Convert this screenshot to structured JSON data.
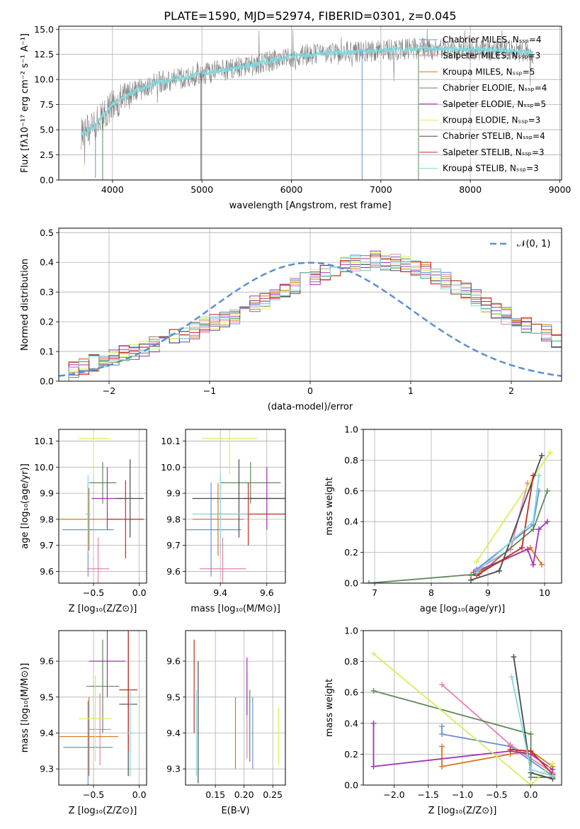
{
  "title": "PLATE=1590, MJD=52974, FIBERID=0301, z=0.045",
  "colors": {
    "c0": "#6a8fd9",
    "c1": "#e87fb0",
    "c2": "#d9761f",
    "c3": "#5e8a5c",
    "c4": "#a033b5",
    "c5": "#d8ef5c",
    "c6": "#4a4a4a",
    "c7": "#c42a20",
    "c8": "#7fd9e0",
    "spectrum": "#808080",
    "gaussian": "#5b8fd4"
  },
  "chart_data": [
    {
      "id": "spectrum",
      "type": "line",
      "xlabel": "wavelength [Angstrom, rest frame]",
      "ylabel": "Flux [fλ10⁻¹⁷ erg cm⁻² s⁻¹ A⁻¹]",
      "xlim": [
        3400,
        9020
      ],
      "ylim": [
        0,
        15.3
      ],
      "xticks": [
        4000,
        5000,
        6000,
        7000,
        8000,
        9000
      ],
      "yticks": [
        0.0,
        2.5,
        5.0,
        7.5,
        10.0,
        12.5,
        15.0
      ],
      "legend_position": "right",
      "legend": [
        "Chabrier MILES, Nₛₛₚ=4",
        "Salpeter MILES, Nₛₛₚ=3",
        "Kroupa MILES, Nₛₛₚ=5",
        "Chabrier ELODIE, Nₛₛₚ=4",
        "Salpeter ELODIE, Nₛₛₚ=5",
        "Kroupa ELODIE, Nₛₛₚ=3",
        "Chabrier STELIB, Nₛₛₚ=4",
        "Salpeter STELIB, Nₛₛₚ=3",
        "Kroupa STELIB, Nₛₛₚ=3"
      ],
      "continuum": [
        [
          3650,
          4.6
        ],
        [
          3750,
          5.0
        ],
        [
          3900,
          6.4
        ],
        [
          4000,
          7.5
        ],
        [
          4200,
          8.6
        ],
        [
          4500,
          9.7
        ],
        [
          4800,
          10.2
        ],
        [
          5000,
          10.6
        ],
        [
          5300,
          11.0
        ],
        [
          5600,
          11.5
        ],
        [
          6000,
          12.3
        ],
        [
          6400,
          12.6
        ],
        [
          6800,
          12.8
        ],
        [
          7200,
          13.0
        ],
        [
          7600,
          13.1
        ],
        [
          8000,
          13.0
        ],
        [
          8400,
          12.9
        ],
        [
          8700,
          12.6
        ]
      ],
      "drops": [
        [
          3810,
          0.2
        ],
        [
          3890,
          0.0
        ],
        [
          4990,
          0.0
        ],
        [
          6790,
          0.0
        ],
        [
          7420,
          0.0
        ]
      ]
    },
    {
      "id": "residuals",
      "type": "step",
      "xlabel": "(data-model)/error",
      "ylabel": "Normed distribution",
      "xlim": [
        -2.5,
        2.5
      ],
      "ylim": [
        0,
        0.515
      ],
      "xticks": [
        -2,
        -1,
        0,
        1,
        2
      ],
      "yticks": [
        0.0,
        0.1,
        0.2,
        0.3,
        0.4,
        0.5
      ],
      "grid": true,
      "gaussian_label": "𝒩(0, 1)",
      "bin_width": 0.1,
      "bin_start": -2.5,
      "hist": [
        [
          0.03,
          0.04,
          0.05,
          0.06,
          0.07,
          0.08,
          0.09,
          0.1,
          0.11,
          0.12,
          0.14,
          0.15,
          0.16,
          0.17,
          0.19,
          0.2,
          0.21,
          0.22,
          0.24,
          0.26,
          0.27,
          0.29,
          0.31,
          0.32,
          0.34,
          0.35,
          0.37,
          0.38,
          0.39,
          0.4,
          0.4,
          0.41,
          0.4,
          0.4,
          0.39,
          0.38,
          0.37,
          0.35,
          0.34,
          0.32,
          0.3,
          0.28,
          0.26,
          0.24,
          0.22,
          0.21,
          0.19,
          0.18,
          0.16,
          0.14
        ],
        [
          0.02,
          0.03,
          0.04,
          0.05,
          0.07,
          0.08,
          0.09,
          0.1,
          0.12,
          0.13,
          0.14,
          0.16,
          0.18,
          0.19,
          0.2,
          0.22,
          0.24,
          0.26,
          0.27,
          0.29,
          0.31,
          0.33,
          0.34,
          0.36,
          0.36,
          0.38,
          0.39,
          0.4,
          0.4,
          0.41,
          0.42,
          0.4,
          0.39,
          0.38,
          0.38,
          0.36,
          0.35,
          0.33,
          0.31,
          0.29,
          0.27,
          0.26,
          0.24,
          0.22,
          0.2,
          0.19,
          0.17,
          0.15,
          0.14,
          0.12
        ]
      ]
    },
    {
      "id": "age-vs-Z",
      "type": "errorbar",
      "xlabel": "Z [log₁₀(Z/Z⊙)]",
      "ylabel": "age  [log₁₀(age/yr)]",
      "xlim": [
        -0.88,
        0.08
      ],
      "ylim": [
        9.555,
        10.145
      ],
      "xticks": [
        -0.5,
        0.0
      ],
      "yticks": [
        9.6,
        9.7,
        9.8,
        9.9,
        10.0,
        10.1
      ],
      "points": [
        {
          "c": 0,
          "x": -0.56,
          "xe": 0.28,
          "y": 9.76,
          "ye": 0.18
        },
        {
          "c": 1,
          "x": -0.45,
          "xe": 0.12,
          "y": 9.61,
          "ye": 0.12
        },
        {
          "c": 2,
          "x": -0.55,
          "xe": 0.33,
          "y": 9.8,
          "ye": 0.12
        },
        {
          "c": 3,
          "x": -0.4,
          "xe": 0.15,
          "y": 9.94,
          "ye": 0.08
        },
        {
          "c": 4,
          "x": -0.35,
          "xe": 0.17,
          "y": 9.88,
          "ye": 0.12
        },
        {
          "c": 5,
          "x": -0.5,
          "xe": 0.17,
          "y": 10.11,
          "ye": 0.14
        },
        {
          "c": 6,
          "x": -0.1,
          "xe": 0.15,
          "y": 9.88,
          "ye": 0.15
        },
        {
          "c": 7,
          "x": -0.15,
          "xe": 0.2,
          "y": 9.8,
          "ye": 0.15
        },
        {
          "c": 8,
          "x": -0.56,
          "xe": 0.03,
          "y": 9.82,
          "ye": 0.15
        }
      ]
    },
    {
      "id": "age-vs-mass",
      "type": "errorbar",
      "xlabel": "mass [log₁₀(M/M⊙)]",
      "ylabel": "",
      "xlim": [
        9.25,
        9.68
      ],
      "ylim": [
        9.555,
        10.145
      ],
      "xticks": [
        9.4,
        9.6
      ],
      "yticks": [
        9.6,
        9.7,
        9.8,
        9.9,
        10.0,
        10.1
      ],
      "points": [
        {
          "c": 0,
          "x": 9.36,
          "xe": 0.13,
          "y": 9.76,
          "ye": 0.18
        },
        {
          "c": 1,
          "x": 9.41,
          "xe": 0.1,
          "y": 9.61,
          "ye": 0.12
        },
        {
          "c": 2,
          "x": 9.39,
          "xe": 0.11,
          "y": 9.8,
          "ye": 0.14
        },
        {
          "c": 3,
          "x": 9.53,
          "xe": 0.13,
          "y": 9.94,
          "ye": 0.08
        },
        {
          "c": 4,
          "x": 9.6,
          "xe": 0.1,
          "y": 9.88,
          "ye": 0.12
        },
        {
          "c": 5,
          "x": 9.44,
          "xe": 0.12,
          "y": 10.11,
          "ye": 0.14
        },
        {
          "c": 6,
          "x": 9.48,
          "xe": 0.2,
          "y": 9.88,
          "ye": 0.15
        },
        {
          "c": 7,
          "x": 9.52,
          "xe": 0.17,
          "y": 9.82,
          "ye": 0.12
        },
        {
          "c": 8,
          "x": 9.4,
          "xe": 0.12,
          "y": 9.82,
          "ye": 0.15
        }
      ]
    },
    {
      "id": "weight-vs-age",
      "type": "line",
      "xlabel": "age  [log₁₀(age/yr)]",
      "ylabel": "mass weight",
      "xlim": [
        6.8,
        10.3
      ],
      "ylim": [
        0,
        1.0
      ],
      "xticks": [
        7,
        8,
        9,
        10
      ],
      "yticks": [
        0.0,
        0.2,
        0.4,
        0.6,
        0.8,
        1.0
      ],
      "grid": true,
      "series": [
        {
          "c": 0,
          "pts": [
            [
              8.8,
              0.09
            ],
            [
              9.8,
              0.38
            ],
            [
              9.9,
              0.6
            ]
          ]
        },
        {
          "c": 1,
          "pts": [
            [
              8.78,
              0.08
            ],
            [
              9.4,
              0.22
            ],
            [
              9.7,
              0.65
            ]
          ]
        },
        {
          "c": 2,
          "pts": [
            [
              8.7,
              0.05
            ],
            [
              9.75,
              0.23
            ],
            [
              9.95,
              0.12
            ]
          ]
        },
        {
          "c": 3,
          "pts": [
            [
              6.9,
              0.0
            ],
            [
              8.85,
              0.06
            ],
            [
              9.8,
              0.35
            ],
            [
              10.05,
              0.6
            ]
          ]
        },
        {
          "c": 4,
          "pts": [
            [
              8.75,
              0.07
            ],
            [
              9.7,
              0.22
            ],
            [
              9.8,
              0.12
            ],
            [
              9.9,
              0.35
            ],
            [
              10.05,
              0.4
            ]
          ]
        },
        {
          "c": 5,
          "pts": [
            [
              8.8,
              0.14
            ],
            [
              10.1,
              0.85
            ]
          ]
        },
        {
          "c": 6,
          "pts": [
            [
              8.7,
              0.02
            ],
            [
              9.2,
              0.08
            ],
            [
              9.95,
              0.83
            ]
          ]
        },
        {
          "c": 7,
          "pts": [
            [
              8.8,
              0.05
            ],
            [
              9.6,
              0.23
            ],
            [
              9.8,
              0.7
            ]
          ]
        },
        {
          "c": 8,
          "pts": [
            [
              8.8,
              0.07
            ],
            [
              9.8,
              0.4
            ],
            [
              9.9,
              0.7
            ]
          ]
        }
      ]
    },
    {
      "id": "mass-vs-Z",
      "type": "errorbar",
      "xlabel": "Z [log₁₀(Z/Z⊙)]",
      "ylabel": "mass [log₁₀(M/M⊙)]",
      "xlim": [
        -0.88,
        0.08
      ],
      "ylim": [
        9.255,
        9.685
      ],
      "xticks": [
        -0.5,
        0.0
      ],
      "yticks": [
        9.3,
        9.4,
        9.5,
        9.6
      ],
      "points": [
        {
          "c": 0,
          "x": -0.56,
          "xe": 0.27,
          "y": 9.36,
          "ye": 0.13
        },
        {
          "c": 1,
          "x": -0.43,
          "xe": 0.12,
          "y": 9.41,
          "ye": 0.1
        },
        {
          "c": 2,
          "x": -0.55,
          "xe": 0.32,
          "y": 9.39,
          "ye": 0.11
        },
        {
          "c": 3,
          "x": -0.4,
          "xe": 0.18,
          "y": 9.53,
          "ye": 0.13
        },
        {
          "c": 4,
          "x": -0.35,
          "xe": 0.2,
          "y": 9.6,
          "ye": 0.1
        },
        {
          "c": 5,
          "x": -0.48,
          "xe": 0.18,
          "y": 9.44,
          "ye": 0.12
        },
        {
          "c": 6,
          "x": -0.12,
          "xe": 0.1,
          "y": 9.48,
          "ye": 0.2
        },
        {
          "c": 7,
          "x": -0.12,
          "xe": 0.1,
          "y": 9.52,
          "ye": 0.17
        },
        {
          "c": 8,
          "x": -0.1,
          "xe": 0.05,
          "y": 9.4,
          "ye": 0.12
        }
      ]
    },
    {
      "id": "mass-vs-ebv",
      "type": "errorbar",
      "xlabel": "E(B-V)",
      "ylabel": "",
      "xlim": [
        0.098,
        0.272
      ],
      "ylim": [
        9.255,
        9.685
      ],
      "xticks": [
        0.15,
        0.2,
        0.25
      ],
      "yticks": [
        9.3,
        9.4,
        9.5,
        9.6
      ],
      "points": [
        {
          "c": 0,
          "x": 0.215,
          "xe": 0,
          "y": 9.4,
          "ye": 0.1
        },
        {
          "c": 1,
          "x": 0.205,
          "xe": 0,
          "y": 9.45,
          "ye": 0.12
        },
        {
          "c": 2,
          "x": 0.185,
          "xe": 0,
          "y": 9.4,
          "ye": 0.1
        },
        {
          "c": 3,
          "x": 0.21,
          "xe": 0,
          "y": 9.42,
          "ye": 0.1
        },
        {
          "c": 4,
          "x": 0.205,
          "xe": 0,
          "y": 9.53,
          "ye": 0.08
        },
        {
          "c": 5,
          "x": 0.26,
          "xe": 0,
          "y": 9.39,
          "ye": 0.08
        },
        {
          "c": 6,
          "x": 0.12,
          "xe": 0,
          "y": 9.43,
          "ye": 0.17
        },
        {
          "c": 7,
          "x": 0.113,
          "xe": 0,
          "y": 9.53,
          "ye": 0.13
        },
        {
          "c": 8,
          "x": 0.117,
          "xe": 0,
          "y": 9.4,
          "ye": 0.12
        }
      ]
    },
    {
      "id": "weight-vs-Z",
      "type": "line",
      "xlabel": "Z [log₁₀(Z/Z⊙)]",
      "ylabel": "mass weight",
      "xlim": [
        -2.45,
        0.45
      ],
      "ylim": [
        0,
        1.0
      ],
      "xticks": [
        -2.0,
        -1.5,
        -1.0,
        -0.5,
        0.0
      ],
      "yticks": [
        0.0,
        0.2,
        0.4,
        0.6,
        0.8,
        1.0
      ],
      "grid": true,
      "series": [
        {
          "c": 0,
          "pts": [
            [
              -1.3,
              0.38
            ],
            [
              -1.3,
              0.33
            ],
            [
              -0.3,
              0.25
            ],
            [
              0.32,
              0.06
            ]
          ]
        },
        {
          "c": 1,
          "pts": [
            [
              -1.3,
              0.65
            ],
            [
              -0.3,
              0.26
            ],
            [
              0.32,
              0.08
            ]
          ]
        },
        {
          "c": 2,
          "pts": [
            [
              -1.3,
              0.25
            ],
            [
              -1.3,
              0.12
            ],
            [
              -0.3,
              0.2
            ],
            [
              0.0,
              0.22
            ],
            [
              0.32,
              0.12
            ]
          ]
        },
        {
          "c": 3,
          "pts": [
            [
              -2.3,
              0.61
            ],
            [
              0.0,
              0.33
            ],
            [
              0.0,
              0.05
            ],
            [
              0.32,
              0.05
            ]
          ]
        },
        {
          "c": 4,
          "pts": [
            [
              -2.3,
              0.4
            ],
            [
              -2.3,
              0.12
            ],
            [
              -0.3,
              0.22
            ],
            [
              0.0,
              0.2
            ],
            [
              0.32,
              0.1
            ]
          ]
        },
        {
          "c": 5,
          "pts": [
            [
              -2.3,
              0.85
            ],
            [
              0.0,
              0.0
            ],
            [
              0.32,
              0.14
            ]
          ]
        },
        {
          "c": 6,
          "pts": [
            [
              -0.25,
              0.83
            ],
            [
              0.0,
              0.08
            ],
            [
              0.32,
              0.04
            ]
          ]
        },
        {
          "c": 7,
          "pts": [
            [
              -0.3,
              0.23
            ],
            [
              0.0,
              0.22
            ],
            [
              0.32,
              0.07
            ]
          ]
        },
        {
          "c": 8,
          "pts": [
            [
              -0.28,
              0.7
            ],
            [
              0.0,
              0.1
            ],
            [
              0.32,
              0.06
            ]
          ]
        }
      ]
    }
  ]
}
